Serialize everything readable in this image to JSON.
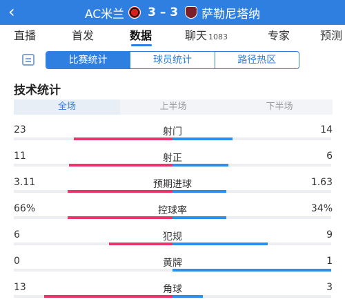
{
  "header": {
    "home_team": "AC米兰",
    "score": "3 – 3",
    "away_team": "萨勒尼塔纳",
    "back_icon": "chevron-left-icon",
    "home_badge": "ac-milan-badge",
    "away_badge": "salernitana-badge",
    "bg_color": "#2e7fe0"
  },
  "tabs": [
    {
      "label": "直播"
    },
    {
      "label": "首发"
    },
    {
      "label": "数据",
      "active": true
    },
    {
      "label": "聊天",
      "count": "1083"
    },
    {
      "label": "专家"
    },
    {
      "label": "预测"
    }
  ],
  "subtabs": [
    {
      "label": "比赛统计",
      "active": true
    },
    {
      "label": "球员统计"
    },
    {
      "label": "路径热区"
    }
  ],
  "section_title": "技术统计",
  "periods": [
    {
      "label": "全场",
      "active": true
    },
    {
      "label": "上半场"
    },
    {
      "label": "下半场"
    }
  ],
  "stats": [
    {
      "label": "射门",
      "home": "23",
      "away": "14",
      "home_share": 0.62,
      "away_share": 0.38
    },
    {
      "label": "射正",
      "home": "11",
      "away": "6",
      "home_share": 0.65,
      "away_share": 0.35
    },
    {
      "label": "预期进球",
      "home": "3.11",
      "away": "1.63",
      "home_share": 0.66,
      "away_share": 0.34
    },
    {
      "label": "控球率",
      "home": "66%",
      "away": "34%",
      "home_share": 0.66,
      "away_share": 0.34
    },
    {
      "label": "犯规",
      "home": "6",
      "away": "9",
      "home_share": 0.4,
      "away_share": 0.6
    },
    {
      "label": "黄牌",
      "home": "0",
      "away": "1",
      "home_share": 0.0,
      "away_share": 1.0
    },
    {
      "label": "角球",
      "home": "13",
      "away": "3",
      "home_share": 0.81,
      "away_share": 0.19
    }
  ],
  "colors": {
    "home": "#e8356b",
    "away": "#2e8fe8",
    "accent": "#2e7fe0"
  }
}
